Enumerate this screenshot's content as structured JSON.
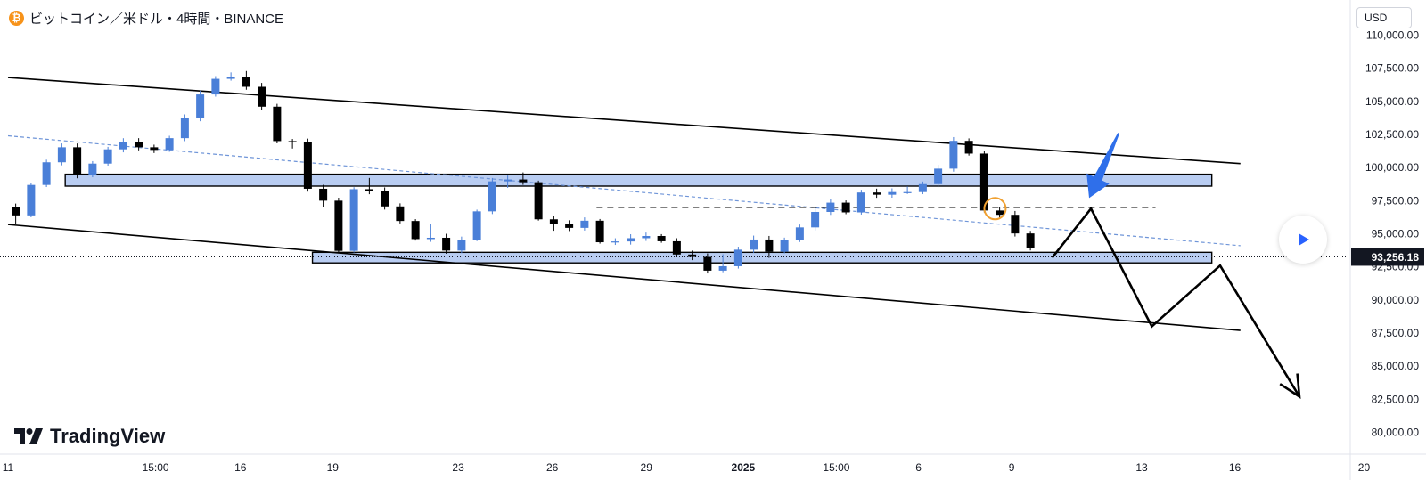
{
  "header": {
    "coin_symbol": "₿",
    "title": "ビットコイン／米ドル・4時間・BINANCE"
  },
  "currency_button": "USD",
  "brand": "TradingView",
  "colors": {
    "up": "#4a7fd8",
    "down": "#000000",
    "zone_fill": "#b9cdf2",
    "channel": "#000000",
    "trend_dashed": "#6f95d8",
    "arrow_blue": "#2f6fea",
    "circle": "#f0a030",
    "price_badge_bg": "#131722"
  },
  "chart_data": {
    "type": "candlestick",
    "symbol": "BTC/USD",
    "timeframe": "4h",
    "exchange": "BINANCE",
    "ylim": [
      79000,
      111000
    ],
    "y_ticks": [
      110000,
      107500,
      105000,
      102500,
      100000,
      97500,
      95000,
      92500,
      90000,
      87500,
      85000,
      82500,
      80000
    ],
    "y_tick_labels": [
      "110,000.00",
      "107,500.00",
      "105,000.00",
      "102,500.00",
      "100,000.00",
      "97,500.00",
      "95,000.00",
      "92,500.00",
      "90,000.00",
      "87,500.00",
      "85,000.00",
      "82,500.00",
      "80,000.00"
    ],
    "x_range_days": [
      0,
      22.5
    ],
    "x_ticks": [
      {
        "t": 0,
        "label": "11",
        "bold": false
      },
      {
        "t": 1.6,
        "label": "15:00",
        "bold": false
      },
      {
        "t": 2.52,
        "label": "16",
        "bold": false
      },
      {
        "t": 3.52,
        "label": "19",
        "bold": false
      },
      {
        "t": 4.88,
        "label": "23",
        "bold": false
      },
      {
        "t": 5.9,
        "label": "26",
        "bold": false
      },
      {
        "t": 6.92,
        "label": "29",
        "bold": false
      },
      {
        "t": 7.97,
        "label": "2025",
        "bold": true
      },
      {
        "t": 8.98,
        "label": "15:00",
        "bold": false
      },
      {
        "t": 9.87,
        "label": "6",
        "bold": false
      },
      {
        "t": 10.88,
        "label": "9",
        "bold": false
      },
      {
        "t": 12.29,
        "label": "13",
        "bold": false
      },
      {
        "t": 13.3,
        "label": "16",
        "bold": false
      },
      {
        "t": 14.7,
        "label": "20",
        "bold": false
      }
    ],
    "last_price": 93256.18,
    "last_price_label": "93,256.18",
    "path": [
      [
        0.0,
        97000
      ],
      [
        0.08,
        96000
      ],
      [
        0.12,
        95600
      ],
      [
        0.25,
        97800
      ],
      [
        0.4,
        99400
      ],
      [
        0.5,
        100400
      ],
      [
        0.6,
        101000
      ],
      [
        0.7,
        101800
      ],
      [
        0.78,
        99800
      ],
      [
        0.85,
        99300
      ],
      [
        0.95,
        100000
      ],
      [
        1.05,
        100600
      ],
      [
        1.15,
        101300
      ],
      [
        1.3,
        102000
      ],
      [
        1.45,
        101700
      ],
      [
        1.6,
        101200
      ],
      [
        1.75,
        101500
      ],
      [
        1.9,
        102800
      ],
      [
        2.05,
        104200
      ],
      [
        2.2,
        105900
      ],
      [
        2.3,
        106500
      ],
      [
        2.4,
        107100
      ],
      [
        2.48,
        106700
      ],
      [
        2.56,
        107300
      ],
      [
        2.65,
        106200
      ],
      [
        2.75,
        105600
      ],
      [
        2.85,
        104400
      ],
      [
        2.95,
        102700
      ],
      [
        3.05,
        101300
      ],
      [
        3.15,
        102100
      ],
      [
        3.25,
        101000
      ],
      [
        3.3,
        99000
      ],
      [
        3.4,
        97200
      ],
      [
        3.5,
        97500
      ],
      [
        3.6,
        96000
      ],
      [
        3.66,
        93400
      ],
      [
        3.72,
        96200
      ],
      [
        3.8,
        98000
      ],
      [
        3.9,
        99100
      ],
      [
        4.0,
        98200
      ],
      [
        4.1,
        97400
      ],
      [
        4.2,
        96900
      ],
      [
        4.3,
        96400
      ],
      [
        4.4,
        95100
      ],
      [
        4.5,
        94600
      ],
      [
        4.6,
        95700
      ],
      [
        4.7,
        94200
      ],
      [
        4.78,
        93600
      ],
      [
        4.86,
        93800
      ],
      [
        4.95,
        94300
      ],
      [
        5.05,
        94800
      ],
      [
        5.12,
        95200
      ],
      [
        5.22,
        98400
      ],
      [
        5.32,
        99000
      ],
      [
        5.42,
        98700
      ],
      [
        5.52,
        99200
      ],
      [
        5.62,
        99500
      ],
      [
        5.72,
        98200
      ],
      [
        5.82,
        96200
      ],
      [
        5.92,
        95400
      ],
      [
        6.02,
        95800
      ],
      [
        6.12,
        95400
      ],
      [
        6.22,
        95500
      ],
      [
        6.32,
        96200
      ],
      [
        6.42,
        94600
      ],
      [
        6.52,
        94300
      ],
      [
        6.65,
        94400
      ],
      [
        6.8,
        94600
      ],
      [
        6.95,
        94900
      ],
      [
        7.1,
        94700
      ],
      [
        7.25,
        94100
      ],
      [
        7.35,
        93300
      ],
      [
        7.45,
        93500
      ],
      [
        7.55,
        93000
      ],
      [
        7.65,
        92000
      ],
      [
        7.75,
        93300
      ],
      [
        7.85,
        92400
      ],
      [
        7.95,
        93400
      ],
      [
        8.05,
        94200
      ],
      [
        8.15,
        94800
      ],
      [
        8.25,
        93400
      ],
      [
        8.35,
        93700
      ],
      [
        8.45,
        94300
      ],
      [
        8.55,
        94800
      ],
      [
        8.65,
        95400
      ],
      [
        8.75,
        95900
      ],
      [
        8.85,
        96800
      ],
      [
        8.95,
        97600
      ],
      [
        9.05,
        97100
      ],
      [
        9.15,
        96500
      ],
      [
        9.25,
        97200
      ],
      [
        9.35,
        98300
      ],
      [
        9.45,
        98000
      ],
      [
        9.55,
        97900
      ],
      [
        9.65,
        98100
      ],
      [
        9.75,
        98400
      ],
      [
        9.85,
        98100
      ],
      [
        9.95,
        98500
      ],
      [
        10.05,
        99000
      ],
      [
        10.15,
        99300
      ],
      [
        10.22,
        101900
      ],
      [
        10.3,
        102100
      ],
      [
        10.38,
        101900
      ],
      [
        10.45,
        101700
      ],
      [
        10.52,
        100800
      ],
      [
        10.58,
        98600
      ],
      [
        10.66,
        96800
      ],
      [
        10.74,
        96300
      ],
      [
        10.82,
        96600
      ],
      [
        10.9,
        95600
      ],
      [
        10.98,
        95100
      ],
      [
        11.06,
        94800
      ],
      [
        11.14,
        94300
      ],
      [
        11.2,
        93400
      ],
      [
        11.26,
        93256
      ]
    ],
    "zones": [
      {
        "t0": 0.62,
        "t1": 13.05,
        "y0": 98600,
        "y1": 99500
      },
      {
        "t0": 3.3,
        "t1": 13.05,
        "y0": 92800,
        "y1": 93600
      }
    ],
    "channel_upper": [
      [
        0.0,
        106800
      ],
      [
        13.36,
        100300
      ]
    ],
    "channel_lower": [
      [
        0.0,
        95700
      ],
      [
        13.36,
        87700
      ]
    ],
    "trend_dashed": [
      [
        0.0,
        102400
      ],
      [
        13.36,
        94100
      ]
    ],
    "level_dashed": {
      "y": 97000,
      "t0": 6.38,
      "t1": 12.44
    },
    "projection": [
      [
        11.32,
        93200
      ],
      [
        11.74,
        96900
      ],
      [
        12.4,
        88000
      ],
      [
        13.14,
        92600
      ],
      [
        14.0,
        82700
      ]
    ],
    "annotation_circle": {
      "t": 10.7,
      "y": 96900
    },
    "annotation_arrow": {
      "t0": 12.04,
      "y0": 102600,
      "t1": 11.72,
      "y1": 97700
    }
  }
}
